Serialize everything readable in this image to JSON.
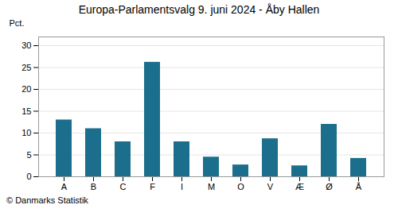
{
  "chart_data": {
    "type": "bar",
    "title": "Europa-Parlamentsvalg 9. juni 2024 - Åby Hallen",
    "categories": [
      "A",
      "B",
      "C",
      "F",
      "I",
      "M",
      "O",
      "V",
      "Æ",
      "Ø",
      "Å"
    ],
    "values": [
      13.0,
      11.0,
      8.0,
      26.2,
      8.0,
      4.5,
      2.7,
      8.7,
      2.5,
      12.0,
      4.2
    ],
    "color": "#1c6f8c",
    "ylabel": "Pct.",
    "ylim": [
      0,
      32
    ],
    "yticks": [
      0,
      5,
      10,
      15,
      20,
      25,
      30
    ],
    "grid": true,
    "caption": "© Danmarks Statistik"
  }
}
